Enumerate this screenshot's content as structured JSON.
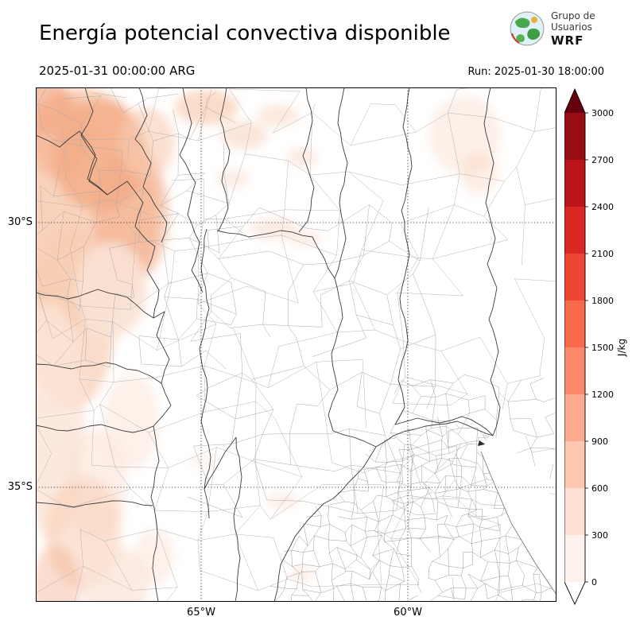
{
  "header": {
    "title": "Energía potencial convectiva disponible",
    "logo": {
      "line1": "Grupo de",
      "line2": "Usuarios",
      "line3": "WRF"
    },
    "valid_time": "2025-01-31 00:00:00 ARG",
    "run_label": "Run: 2025-01-30 18:00:00"
  },
  "map": {
    "lat_labels": [
      {
        "text": "30°S"
      },
      {
        "text": "35°S"
      }
    ],
    "lon_labels": [
      {
        "text": "65°W"
      },
      {
        "text": "60°W"
      }
    ]
  },
  "colorbar": {
    "unit": "J/kg",
    "tick_labels": [
      "3000",
      "2700",
      "2400",
      "2100",
      "1800",
      "1500",
      "1200",
      "900",
      "600",
      "300",
      "0"
    ],
    "segment_colors_top_to_bottom": [
      "#980c13",
      "#bb141a",
      "#d92723",
      "#ef4533",
      "#f9694c",
      "#fc8a6a",
      "#fcab8f",
      "#fdc7b0",
      "#fee1d3",
      "#fff2ec"
    ],
    "over_color": "#67000d",
    "under_color": "#ffffff"
  },
  "shading": {
    "light": "#fbe3d6",
    "medium": "#f8cdb4",
    "strong": "#f3ab87"
  }
}
